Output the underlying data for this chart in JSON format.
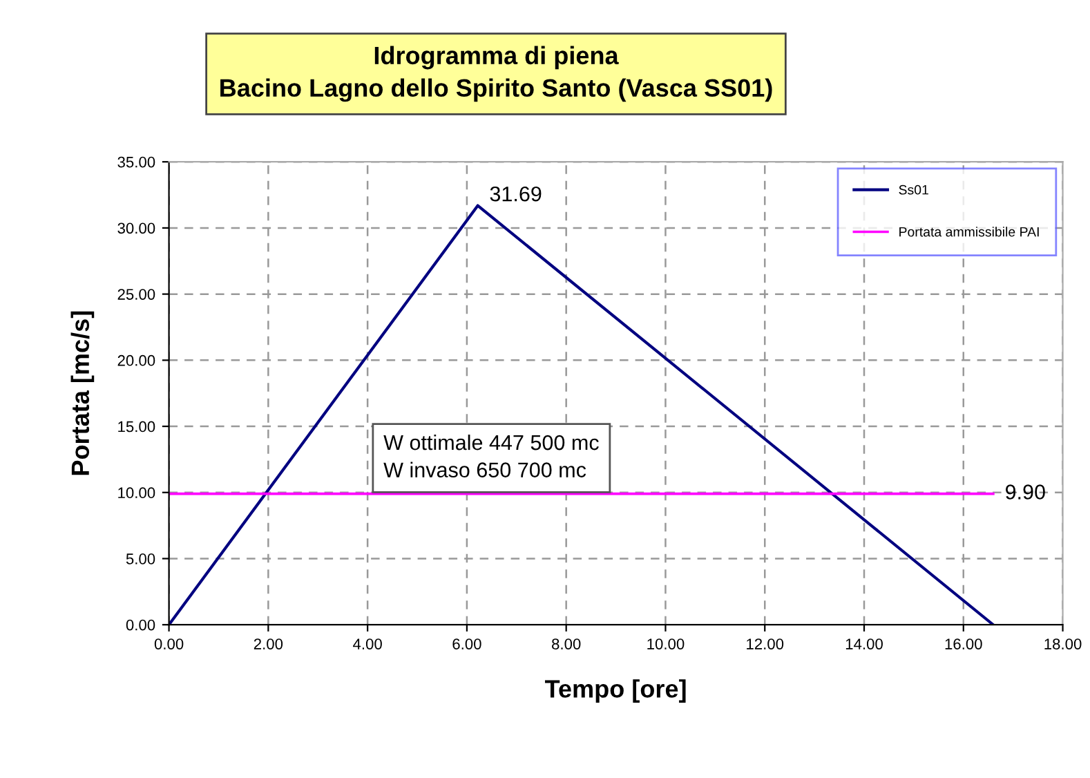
{
  "chart_data": {
    "type": "line",
    "title": "Idrogramma di piena\nBacino Lagno dello Spirito Santo (Vasca SS01)",
    "xlabel": "Tempo [ore]",
    "ylabel": "Portata [mc/s]",
    "series": [
      {
        "name": "Ss01",
        "color": "#000080",
        "x": [
          0,
          6.22,
          16.6
        ],
        "values": [
          0,
          31.69,
          0
        ],
        "value_labels": [
          null,
          "31.69",
          null
        ]
      },
      {
        "name": "Portata ammissibile PAI",
        "color": "#ff00ff",
        "x": [
          0,
          16.6
        ],
        "values": [
          9.9,
          9.9
        ],
        "value_labels": [
          null,
          "9.90"
        ]
      }
    ],
    "annotations": [
      "W ottimale 447 500 mc\nW invaso 650 700 mc"
    ],
    "xlim": [
      0,
      18
    ],
    "ylim": [
      0,
      35
    ],
    "xticks": [
      {
        "value": 0,
        "label": "0.00"
      },
      {
        "value": 2,
        "label": "2.00"
      },
      {
        "value": 4,
        "label": "4.00"
      },
      {
        "value": 6,
        "label": "6.00"
      },
      {
        "value": 8,
        "label": "8.00"
      },
      {
        "value": 10,
        "label": "10.00"
      },
      {
        "value": 12,
        "label": "12.00"
      },
      {
        "value": 14,
        "label": "14.00"
      },
      {
        "value": 16,
        "label": "16.00"
      },
      {
        "value": 18,
        "label": "18.00"
      }
    ],
    "yticks": [
      {
        "value": 0,
        "label": "0.00"
      },
      {
        "value": 5,
        "label": "5.00"
      },
      {
        "value": 10,
        "label": "10.00"
      },
      {
        "value": 15,
        "label": "15.00"
      },
      {
        "value": 20,
        "label": "20.00"
      },
      {
        "value": 25,
        "label": "25.00"
      },
      {
        "value": 30,
        "label": "30.00"
      },
      {
        "value": 35,
        "label": "35.00"
      }
    ],
    "grid": true,
    "legend": "top right",
    "marker": "none",
    "line_style": "solid"
  }
}
